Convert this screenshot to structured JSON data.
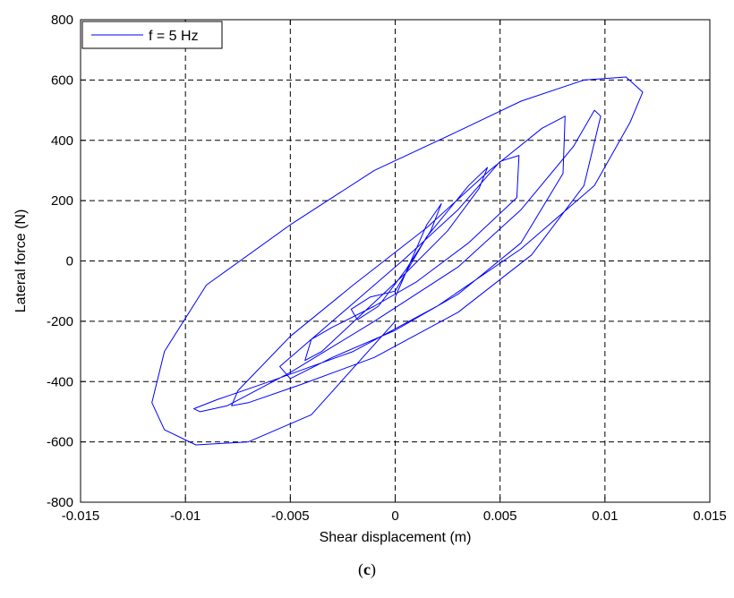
{
  "chart_data": {
    "type": "line",
    "title": "",
    "xlabel": "Shear displacement (m)",
    "ylabel": "Lateral force (N)",
    "xlim": [
      -0.015,
      0.015
    ],
    "ylim": [
      -800,
      800
    ],
    "xticks": [
      -0.015,
      -0.01,
      -0.005,
      0,
      0.005,
      0.01,
      0.015
    ],
    "xtick_labels": [
      "-0.015",
      "-0.01",
      "-0.005",
      "0",
      "0.005",
      "0.01",
      "0.015"
    ],
    "yticks": [
      -800,
      -600,
      -400,
      -200,
      0,
      200,
      400,
      600,
      800
    ],
    "ytick_labels": [
      "-800",
      "-600",
      "-400",
      "-200",
      "0",
      "200",
      "400",
      "600",
      "800"
    ],
    "grid": true,
    "legend_position": "top-left",
    "series": [
      {
        "name": "f = 5 Hz",
        "color": "#0000ff",
        "x": [
          0,
          0.0015,
          0.0022,
          0.0017,
          0.0005,
          -0.0008,
          -0.0018,
          -0.0021,
          -0.0012,
          0,
          0.0015,
          0.0035,
          0.0044,
          0.004,
          0.0025,
          0.0005,
          -0.0015,
          -0.0035,
          -0.0043,
          -0.004,
          -0.003,
          -0.001,
          0.001,
          0.0035,
          0.0058,
          0.0059,
          0.005,
          0.003,
          0.0005,
          -0.002,
          -0.0045,
          -0.0055,
          -0.005,
          -0.003,
          0,
          0.003,
          0.006,
          0.008,
          0.0081,
          0.007,
          0.0045,
          0.0015,
          -0.002,
          -0.005,
          -0.0075,
          -0.0078,
          -0.007,
          -0.0045,
          -0.001,
          0.003,
          0.0065,
          0.009,
          0.0098,
          0.0095,
          0.0085,
          0.006,
          0.003,
          -0.001,
          -0.005,
          -0.008,
          -0.0093,
          -0.0096,
          -0.0085,
          -0.006,
          -0.002,
          0.002,
          0.006,
          0.0095,
          0.0112,
          0.0118,
          0.011,
          0.009,
          0.006,
          0.003,
          -0.001,
          -0.005,
          -0.009,
          -0.011,
          -0.0116,
          -0.011,
          -0.0095,
          -0.007,
          -0.004,
          0
        ],
        "y": [
          -120,
          120,
          190,
          100,
          -30,
          -150,
          -195,
          -160,
          -120,
          -100,
          80,
          250,
          310,
          240,
          100,
          -40,
          -170,
          -300,
          -330,
          -260,
          -220,
          -150,
          -70,
          60,
          210,
          350,
          330,
          170,
          10,
          -140,
          -290,
          -350,
          -390,
          -320,
          -230,
          -110,
          60,
          290,
          480,
          440,
          300,
          110,
          -80,
          -250,
          -430,
          -480,
          -470,
          -410,
          -320,
          -170,
          20,
          250,
          480,
          500,
          380,
          170,
          -20,
          -200,
          -370,
          -480,
          -500,
          -490,
          -460,
          -400,
          -300,
          -150,
          40,
          250,
          460,
          560,
          610,
          600,
          530,
          430,
          300,
          120,
          -80,
          -300,
          -470,
          -560,
          -610,
          -600,
          -510,
          -200
        ]
      }
    ]
  },
  "caption": {
    "prefix": "(",
    "letter": "c",
    "suffix": ")"
  }
}
